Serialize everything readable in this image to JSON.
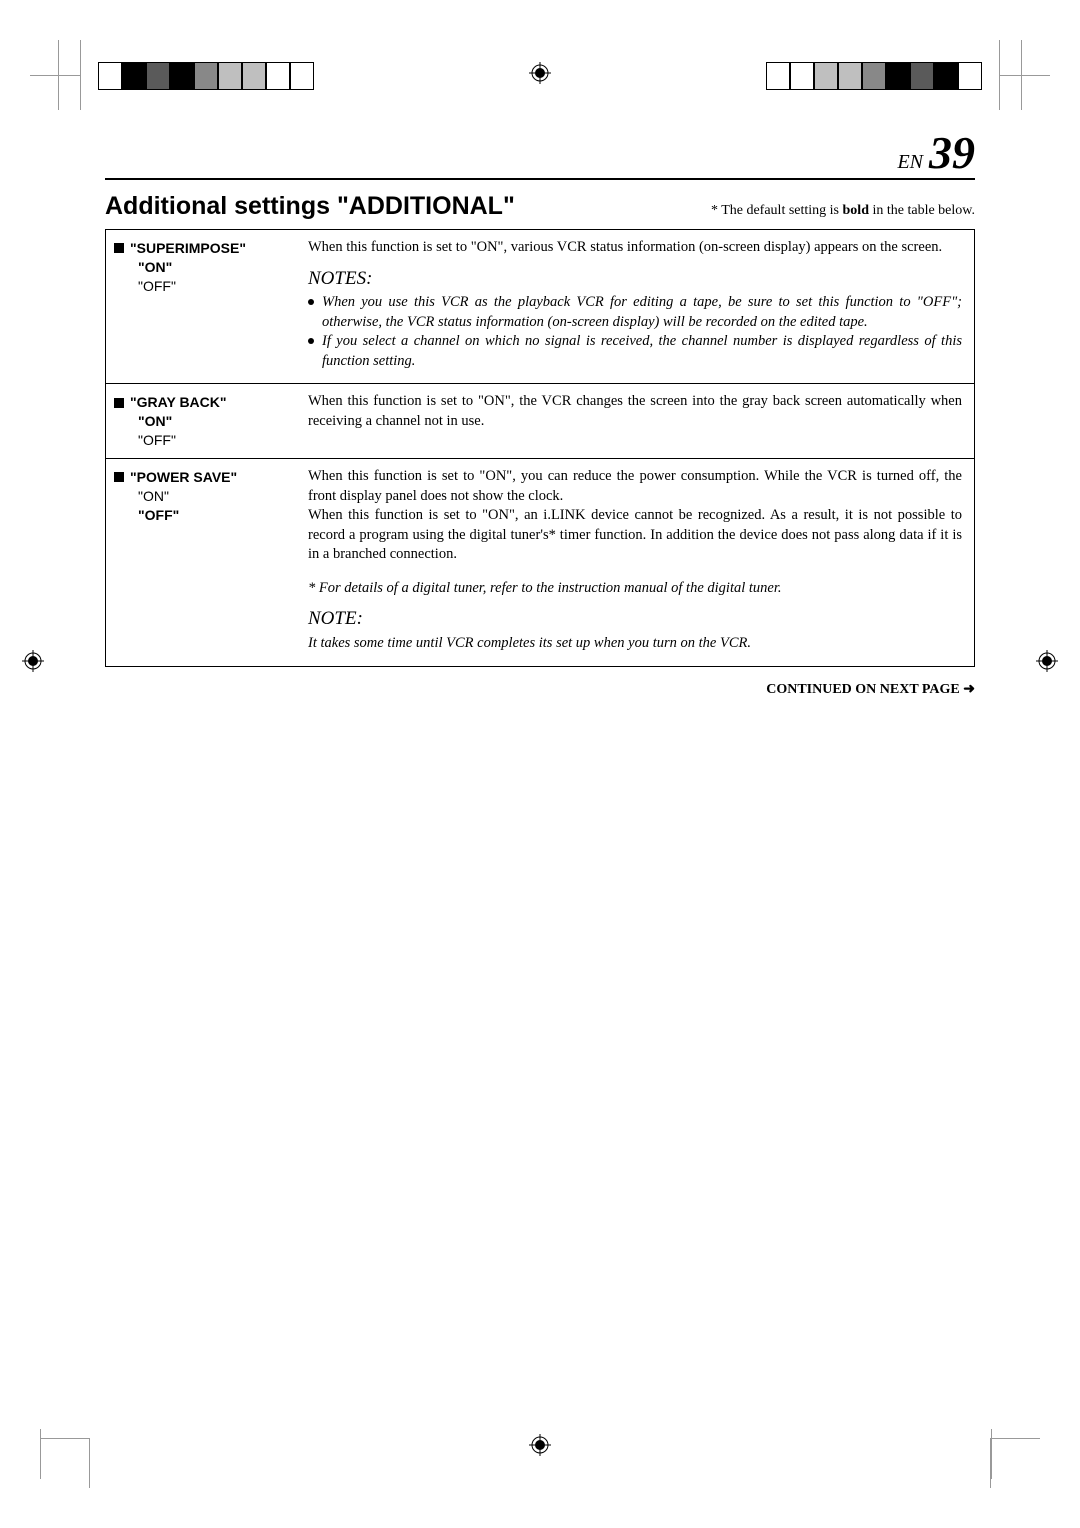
{
  "header": {
    "en_label": "EN",
    "page_num": "39"
  },
  "section": {
    "title": "Additional settings \"ADDITIONAL\"",
    "default_note_prefix": "* The default setting is ",
    "default_note_bold": "bold",
    "default_note_suffix": " in the table below."
  },
  "rows": [
    {
      "name": "\"SUPERIMPOSE\"",
      "opt1": "\"ON\"",
      "opt1_bold": true,
      "opt2": "\"OFF\"",
      "opt2_bold": false,
      "body": "When this function is set to \"ON\", various VCR status information (on-screen display) appears on the screen.",
      "notes_header": "NOTES:",
      "notes": [
        "When you use this VCR as the playback VCR for editing a tape, be sure to set this function to \"OFF\"; otherwise, the VCR status information (on-screen display) will be recorded on the edited tape.",
        "If you select a channel on which no signal is received, the channel number is displayed regardless of this function setting."
      ]
    },
    {
      "name": "\"GRAY BACK\"",
      "opt1": "\"ON\"",
      "opt1_bold": true,
      "opt2": "\"OFF\"",
      "opt2_bold": false,
      "body": "When this function is set to \"ON\", the VCR changes the screen into the gray back screen automatically when receiving a channel not in use."
    },
    {
      "name": "\"POWER SAVE\"",
      "opt1": "\"ON\"",
      "opt1_bold": false,
      "opt2": "\"OFF\"",
      "opt2_bold": true,
      "body": "When this function is set to \"ON\", you can reduce the power consumption. While the VCR is turned off, the front display panel does not show the clock.\nWhen this function is set to \"ON\", an i.LINK device cannot be recognized. As a result, it is not possible to record a program using the digital tuner's* timer function. In addition the device does not pass along data if it is in a branched connection.",
      "footnote": "* For details of a digital tuner, refer to the instruction manual of the digital tuner.",
      "note_header": "NOTE:",
      "note_single": "It takes some time until VCR completes its set up when you turn on the VCR."
    }
  ],
  "continued": "CONTINUED ON NEXT PAGE",
  "colors": {
    "text": "#000000",
    "bg": "#ffffff"
  }
}
